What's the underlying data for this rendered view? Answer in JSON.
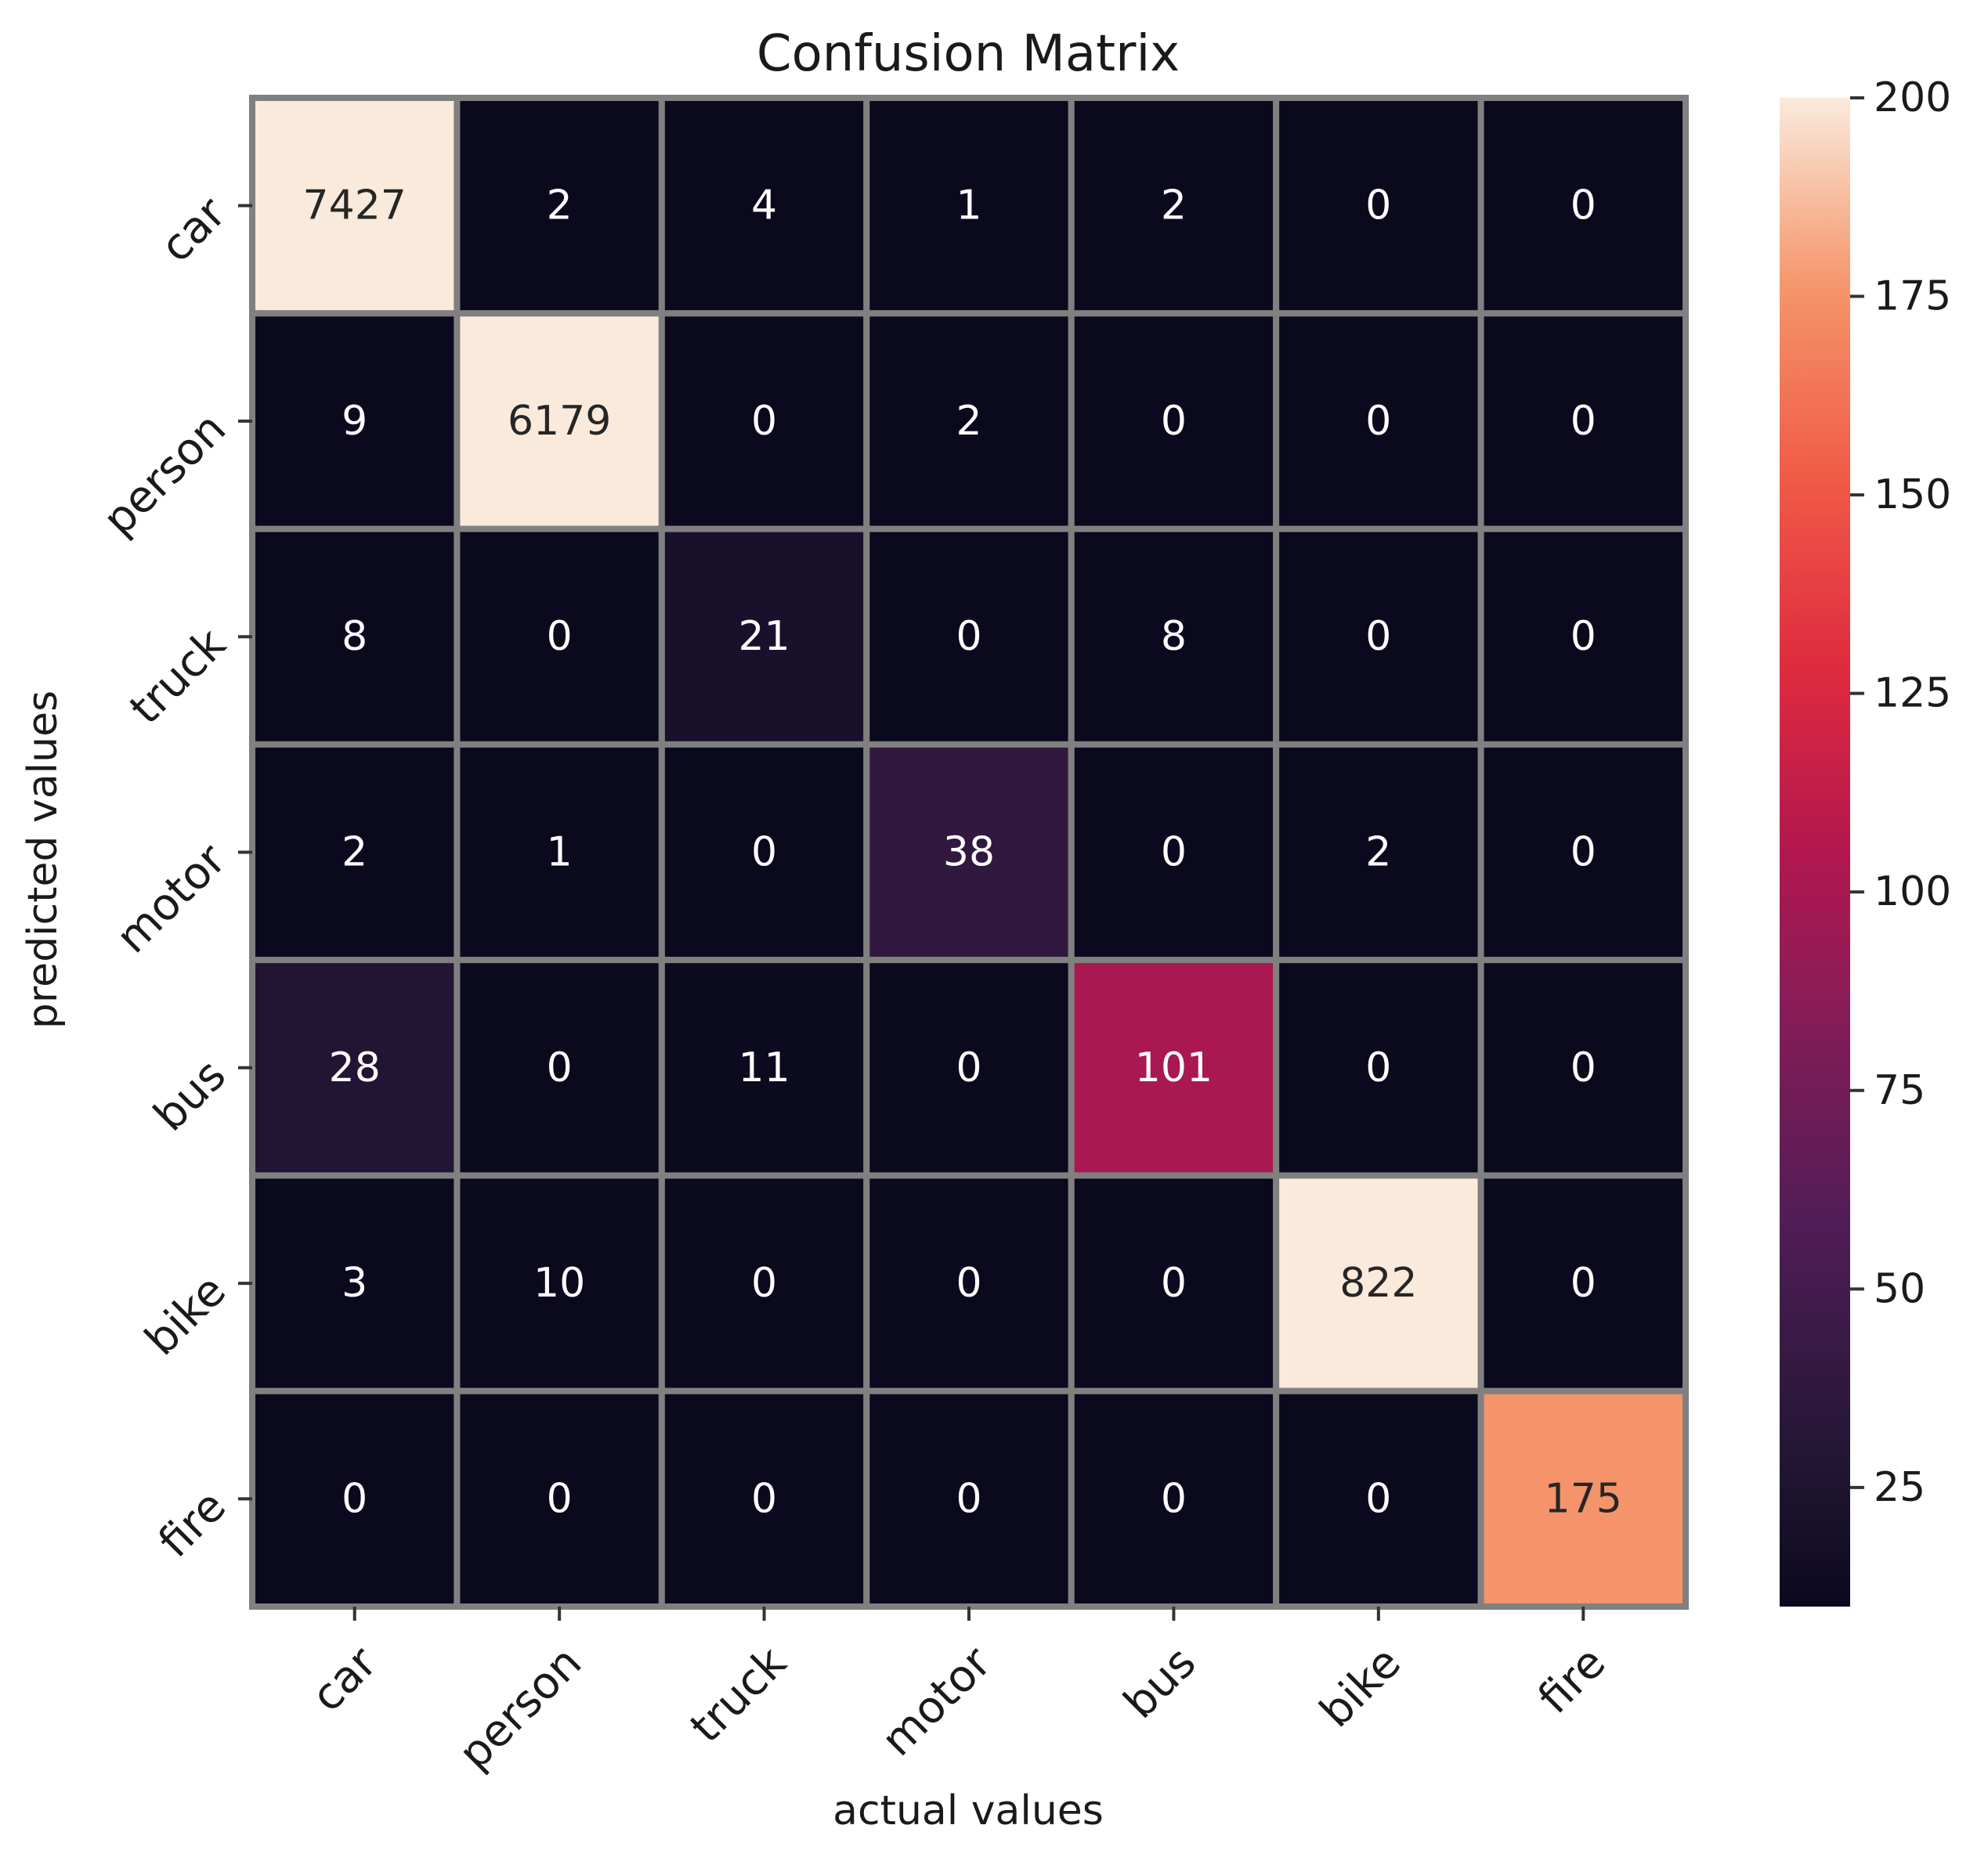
{
  "chart_data": {
    "type": "heatmap",
    "title": "Confusion Matrix",
    "xlabel": "actual values",
    "ylabel": "predicted values",
    "x_categories": [
      "car",
      "person",
      "truck",
      "motor",
      "bus",
      "bike",
      "fire"
    ],
    "y_categories": [
      "car",
      "person",
      "truck",
      "motor",
      "bus",
      "bike",
      "fire"
    ],
    "values": [
      [
        7427,
        2,
        4,
        1,
        2,
        0,
        0
      ],
      [
        9,
        6179,
        0,
        2,
        0,
        0,
        0
      ],
      [
        8,
        0,
        21,
        0,
        8,
        0,
        0
      ],
      [
        2,
        1,
        0,
        38,
        0,
        2,
        0
      ],
      [
        28,
        0,
        11,
        0,
        101,
        0,
        0
      ],
      [
        3,
        10,
        0,
        0,
        0,
        822,
        0
      ],
      [
        0,
        0,
        0,
        0,
        0,
        0,
        175
      ]
    ],
    "colorbar": {
      "colormap": "rocket",
      "vmin": 10,
      "vmax": 200,
      "ticks": [
        25,
        50,
        75,
        100,
        125,
        150,
        175,
        200
      ]
    },
    "grid": true,
    "cell_border_color": "#808080",
    "annotation_colors": {
      "on_dark": "#ffffff",
      "on_light": "#262626"
    }
  }
}
